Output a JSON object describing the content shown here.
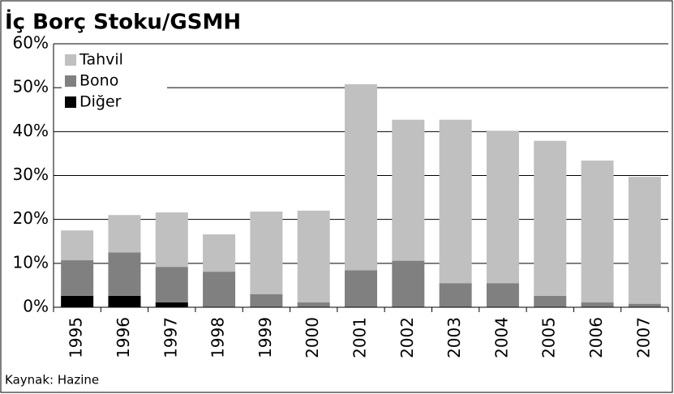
{
  "chart_data": {
    "type": "stacked_bar",
    "title": "İç Borç Stoku/GSMH",
    "source": "Kaynak: Hazine",
    "categories": [
      "1995",
      "1996",
      "1997",
      "1998",
      "1999",
      "2000",
      "2001",
      "2002",
      "2003",
      "2004",
      "2005",
      "2006",
      "2007"
    ],
    "series": [
      {
        "name": "Tahvil",
        "color": "#c0c0c0",
        "values": [
          6.8,
          8.5,
          12.4,
          8.5,
          18.8,
          20.9,
          42.4,
          32.1,
          37.2,
          34.7,
          35.3,
          32.3,
          28.9
        ]
      },
      {
        "name": "Bono",
        "color": "#808080",
        "values": [
          8.1,
          9.9,
          8.1,
          8.1,
          3.0,
          1.1,
          8.4,
          10.6,
          5.5,
          5.5,
          2.6,
          1.1,
          0.8
        ]
      },
      {
        "name": "Diğer",
        "color": "#000000",
        "values": [
          2.6,
          2.6,
          1.1,
          0,
          0,
          0,
          0,
          0,
          0,
          0,
          0,
          0,
          0
        ]
      }
    ],
    "ylim": [
      0,
      60
    ],
    "yticks": [
      {
        "value": 0,
        "label": "0%"
      },
      {
        "value": 10,
        "label": "10%"
      },
      {
        "value": 20,
        "label": "20%"
      },
      {
        "value": 30,
        "label": "30%"
      },
      {
        "value": 40,
        "label": "40%"
      },
      {
        "value": 50,
        "label": "50%"
      },
      {
        "value": 60,
        "label": "60%"
      }
    ],
    "grid": true,
    "legend": "upper left"
  }
}
